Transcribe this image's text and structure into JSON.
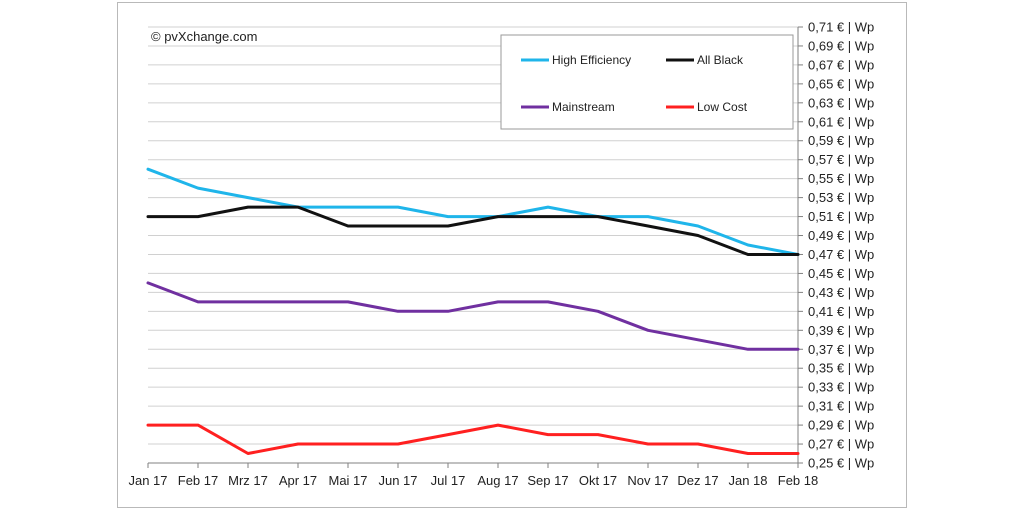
{
  "copyright": "© pvXchange.com",
  "chart_data": {
    "type": "line",
    "title": "",
    "xlabel": "",
    "ylabel": "",
    "categories": [
      "Jan 17",
      "Feb 17",
      "Mrz 17",
      "Apr 17",
      "Mai 17",
      "Jun 17",
      "Jul 17",
      "Aug 17",
      "Sep 17",
      "Okt 17",
      "Nov 17",
      "Dez 17",
      "Jan 18",
      "Feb 18"
    ],
    "ylim": [
      0.25,
      0.71
    ],
    "yticks": [
      0.25,
      0.27,
      0.29,
      0.31,
      0.33,
      0.35,
      0.37,
      0.39,
      0.41,
      0.43,
      0.45,
      0.47,
      0.49,
      0.51,
      0.53,
      0.55,
      0.57,
      0.59,
      0.61,
      0.63,
      0.65,
      0.67,
      0.69,
      0.71
    ],
    "ytick_labels": [
      "0,25 € | Wp",
      "0,27 € | Wp",
      "0,29 € | Wp",
      "0,31 € | Wp",
      "0,33 € | Wp",
      "0,35 € | Wp",
      "0,37 € | Wp",
      "0,39 € | Wp",
      "0,41 € | Wp",
      "0,43 € | Wp",
      "0,45 € | Wp",
      "0,47 € | Wp",
      "0,49 € | Wp",
      "0,51 € | Wp",
      "0,53 € | Wp",
      "0,55 € | Wp",
      "0,57 € | Wp",
      "0,59 € | Wp",
      "0,61 € | Wp",
      "0,63 € | Wp",
      "0,65 € | Wp",
      "0,67 € | Wp",
      "0,69 € | Wp",
      "0,71 € | Wp"
    ],
    "y_axis_side": "right",
    "grid": true,
    "legend_position": "top-right",
    "series": [
      {
        "name": "High Efficiency",
        "color": "#1fb5ea",
        "values": [
          0.56,
          0.54,
          0.53,
          0.52,
          0.52,
          0.52,
          0.51,
          0.51,
          0.52,
          0.51,
          0.51,
          0.5,
          0.48,
          0.47
        ]
      },
      {
        "name": "All Black",
        "color": "#111111",
        "values": [
          0.51,
          0.51,
          0.52,
          0.52,
          0.5,
          0.5,
          0.5,
          0.51,
          0.51,
          0.51,
          0.5,
          0.49,
          0.47,
          0.47
        ]
      },
      {
        "name": "Mainstream",
        "color": "#7030a0",
        "values": [
          0.44,
          0.42,
          0.42,
          0.42,
          0.42,
          0.41,
          0.41,
          0.42,
          0.42,
          0.41,
          0.39,
          0.38,
          0.37,
          0.37
        ]
      },
      {
        "name": "Low Cost",
        "color": "#ff2020",
        "values": [
          0.29,
          0.29,
          0.26,
          0.27,
          0.27,
          0.27,
          0.28,
          0.29,
          0.28,
          0.28,
          0.27,
          0.27,
          0.26,
          0.26
        ]
      }
    ]
  }
}
